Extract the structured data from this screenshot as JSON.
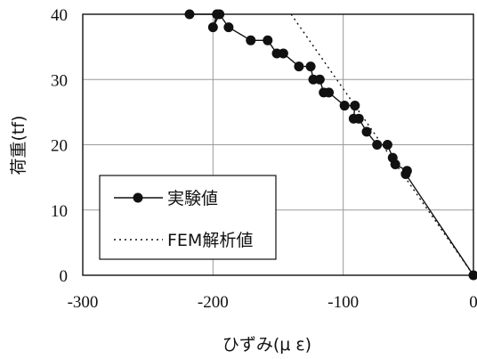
{
  "chart_data": {
    "type": "line",
    "title": "",
    "xlabel": "ひずみ(μ ε)",
    "ylabel": "荷重(tf)",
    "xlim": [
      -300,
      0
    ],
    "ylim": [
      0,
      40
    ],
    "x_ticks": [
      "-300",
      "-200",
      "-100",
      "0"
    ],
    "y_ticks": [
      "0",
      "10",
      "20",
      "30",
      "40"
    ],
    "grid": true,
    "legend_position": "lower-left",
    "series": [
      {
        "name": "実験値",
        "style": "solid-with-filled-circles",
        "color": "#111111",
        "points": [
          {
            "x": -218,
            "y": 40
          },
          {
            "x": -197,
            "y": 40
          },
          {
            "x": -200,
            "y": 38
          },
          {
            "x": -195,
            "y": 40
          },
          {
            "x": -188,
            "y": 38
          },
          {
            "x": -171,
            "y": 36
          },
          {
            "x": -158,
            "y": 36
          },
          {
            "x": -151,
            "y": 34
          },
          {
            "x": -146,
            "y": 34
          },
          {
            "x": -134,
            "y": 32
          },
          {
            "x": -125,
            "y": 32
          },
          {
            "x": -123,
            "y": 30
          },
          {
            "x": -118,
            "y": 30
          },
          {
            "x": -115,
            "y": 28
          },
          {
            "x": -111,
            "y": 28
          },
          {
            "x": -99,
            "y": 26
          },
          {
            "x": -91,
            "y": 26
          },
          {
            "x": -92,
            "y": 24
          },
          {
            "x": -88,
            "y": 24
          },
          {
            "x": -82,
            "y": 22
          },
          {
            "x": -74,
            "y": 20
          },
          {
            "x": -66,
            "y": 20
          },
          {
            "x": -62,
            "y": 18
          },
          {
            "x": -60,
            "y": 17
          },
          {
            "x": -51,
            "y": 16
          },
          {
            "x": -52,
            "y": 15.5
          },
          {
            "x": 0,
            "y": 0
          }
        ]
      },
      {
        "name": "FEM解析値",
        "style": "dotted",
        "color": "#111111",
        "points": [
          {
            "x": -140,
            "y": 40
          },
          {
            "x": 0,
            "y": 0
          }
        ]
      }
    ]
  }
}
